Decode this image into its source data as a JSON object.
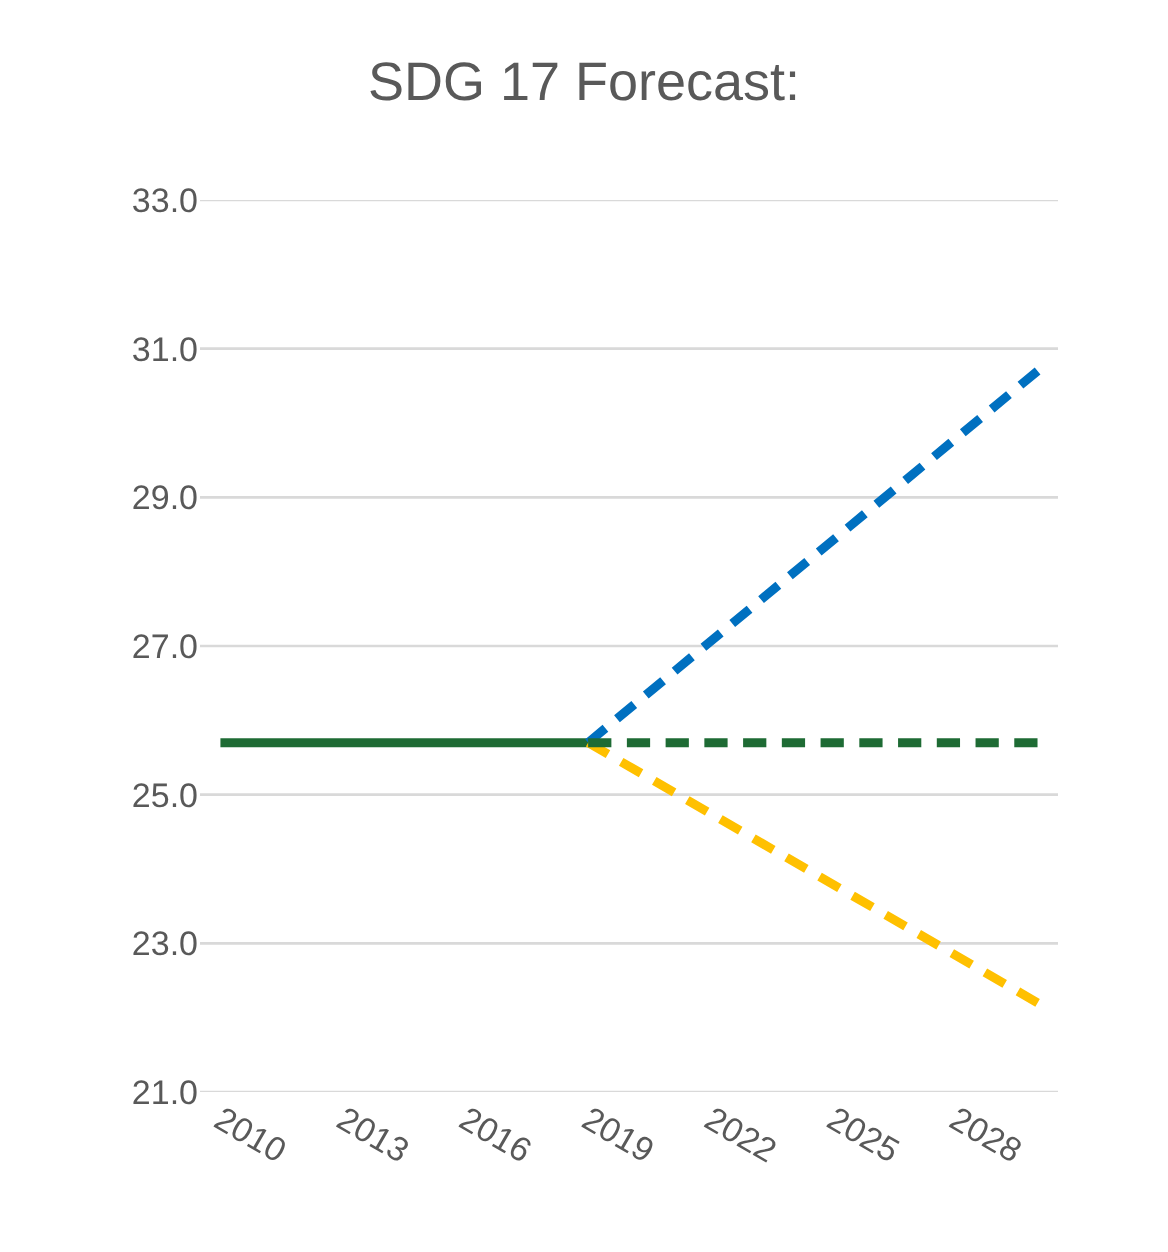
{
  "chart_data": {
    "type": "line",
    "title": "SDG 17 Forecast:",
    "xlim": [
      2009.5,
      2030.5
    ],
    "xticks": [
      2010,
      2013,
      2016,
      2019,
      2022,
      2025,
      2028
    ],
    "ylim": [
      21,
      33
    ],
    "yticks": [
      {
        "value": 21,
        "label": "21.0"
      },
      {
        "value": 23,
        "label": "23.0"
      },
      {
        "value": 25,
        "label": "25.0"
      },
      {
        "value": 27,
        "label": "27.0"
      },
      {
        "value": 29,
        "label": "29.0"
      },
      {
        "value": 31,
        "label": "31.0"
      },
      {
        "value": 33,
        "label": "33.0"
      }
    ],
    "grid": "y",
    "series": [
      {
        "color": "#1e6b34",
        "line_style": "solid",
        "x": [
          2010,
          2019
        ],
        "values": [
          25.7,
          25.7
        ]
      },
      {
        "color": "#0070c0",
        "line_style": "dashed",
        "x": [
          2019,
          2030
        ],
        "values": [
          25.7,
          30.7
        ]
      },
      {
        "color": "#ffc000",
        "line_style": "dashed",
        "x": [
          2019,
          2030
        ],
        "values": [
          25.7,
          22.2
        ]
      },
      {
        "color": "#1e6b34",
        "line_style": "dashed",
        "x": [
          2019,
          2030
        ],
        "values": [
          25.7,
          25.7
        ]
      }
    ]
  }
}
